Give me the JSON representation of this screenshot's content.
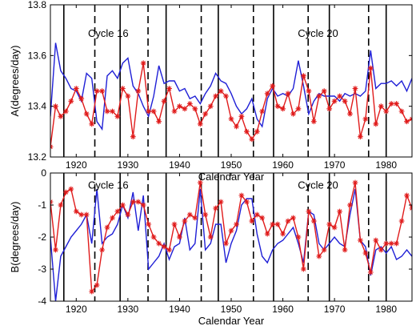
{
  "chart_data": [
    {
      "type": "line",
      "ylabel": "A(degrees/day)",
      "xlabel": "Calendar Year",
      "xlim": [
        1915,
        1985
      ],
      "ylim": [
        13.2,
        13.8
      ],
      "xticks": [
        1920,
        1930,
        1940,
        1950,
        1960,
        1970,
        1980
      ],
      "yticks": [
        13.2,
        13.4,
        13.6,
        13.8
      ],
      "ytick_labels": [
        "13.2",
        "13.4",
        "13.6",
        "13.8"
      ],
      "solid_lines": [
        1917.6,
        1928.5,
        1937.4,
        1947.5,
        1958.2,
        1969.0,
        1980.0
      ],
      "dashed_lines": [
        1923.6,
        1933.9,
        1944.2,
        1954.3,
        1964.9,
        1976.6
      ],
      "annotations": [
        {
          "text": "Cycle 16",
          "x": 1926.2,
          "y": 13.69
        },
        {
          "text": "Cycle 20",
          "x": 1966.8,
          "y": 13.69
        }
      ],
      "series": [
        {
          "color": "#1f1fd6",
          "marker": "none",
          "x": [
            1915,
            1916,
            1917,
            1918,
            1919,
            1920,
            1921,
            1922,
            1923,
            1924,
            1925,
            1926,
            1927,
            1928,
            1929,
            1930,
            1931,
            1932,
            1933,
            1934,
            1935,
            1936,
            1937,
            1938,
            1939,
            1940,
            1941,
            1942,
            1943,
            1944,
            1945,
            1946,
            1947,
            1948,
            1949,
            1950,
            1951,
            1952,
            1953,
            1954,
            1955,
            1956,
            1957,
            1958,
            1959,
            1960,
            1961,
            1962,
            1963,
            1964,
            1965,
            1966,
            1967,
            1968,
            1969,
            1970,
            1971,
            1972,
            1973,
            1974,
            1975,
            1976,
            1977,
            1978,
            1979,
            1980,
            1981,
            1982,
            1983,
            1984,
            1985
          ],
          "y": [
            13.36,
            13.65,
            13.54,
            13.51,
            13.47,
            13.46,
            13.42,
            13.53,
            13.51,
            13.34,
            13.31,
            13.52,
            13.54,
            13.51,
            13.57,
            13.59,
            13.48,
            13.45,
            13.4,
            13.36,
            13.44,
            13.56,
            13.49,
            13.5,
            13.5,
            13.46,
            13.47,
            13.43,
            13.44,
            13.41,
            13.45,
            13.48,
            13.53,
            13.5,
            13.49,
            13.45,
            13.4,
            13.37,
            13.39,
            13.43,
            13.35,
            13.32,
            13.43,
            13.47,
            13.44,
            13.45,
            13.44,
            13.47,
            13.58,
            13.48,
            13.37,
            13.42,
            13.45,
            13.44,
            13.44,
            13.44,
            13.42,
            13.45,
            13.44,
            13.45,
            13.44,
            13.46,
            13.62,
            13.47,
            13.49,
            13.49,
            13.5,
            13.48,
            13.5,
            13.46,
            13.51
          ]
        },
        {
          "color": "#e01b1b",
          "marker": "star",
          "x": [
            1915,
            1916,
            1917,
            1918,
            1919,
            1920,
            1921,
            1922,
            1923,
            1924,
            1925,
            1926,
            1927,
            1928,
            1929,
            1930,
            1931,
            1932,
            1933,
            1934,
            1935,
            1936,
            1937,
            1938,
            1939,
            1940,
            1941,
            1942,
            1943,
            1944,
            1945,
            1946,
            1947,
            1948,
            1949,
            1950,
            1951,
            1952,
            1953,
            1954,
            1955,
            1956,
            1957,
            1958,
            1959,
            1960,
            1961,
            1962,
            1963,
            1964,
            1965,
            1966,
            1967,
            1968,
            1969,
            1970,
            1971,
            1972,
            1973,
            1974,
            1975,
            1976,
            1977,
            1978,
            1979,
            1980,
            1981,
            1982,
            1983,
            1984,
            1985
          ],
          "y": [
            13.24,
            13.4,
            13.36,
            13.38,
            13.42,
            13.47,
            13.43,
            13.37,
            13.33,
            13.46,
            13.46,
            13.38,
            13.38,
            13.36,
            13.47,
            13.44,
            13.28,
            13.46,
            13.57,
            13.38,
            13.38,
            13.34,
            13.42,
            13.47,
            13.38,
            13.4,
            13.39,
            13.41,
            13.39,
            13.33,
            13.37,
            13.4,
            13.44,
            13.46,
            13.44,
            13.35,
            13.32,
            13.36,
            13.3,
            13.27,
            13.3,
            13.38,
            13.45,
            13.48,
            13.4,
            13.39,
            13.45,
            13.37,
            13.39,
            13.52,
            13.46,
            13.34,
            13.44,
            13.46,
            13.39,
            13.42,
            13.44,
            13.42,
            13.37,
            13.47,
            13.28,
            13.35,
            13.55,
            13.33,
            13.4,
            13.38,
            13.41,
            13.41,
            13.38,
            13.34,
            13.35
          ]
        }
      ]
    },
    {
      "type": "line",
      "ylabel": "B(degrees/day)",
      "xlabel": "Calendar Year",
      "xlim": [
        1915,
        1985
      ],
      "ylim": [
        -4,
        0
      ],
      "xticks": [
        1920,
        1930,
        1940,
        1950,
        1960,
        1970,
        1980
      ],
      "yticks": [
        -4,
        -3,
        -2,
        -1,
        0
      ],
      "ytick_labels": [
        "-4",
        "-3",
        "-2",
        "-1",
        "0"
      ],
      "solid_lines": [
        1917.6,
        1928.5,
        1937.4,
        1947.5,
        1958.2,
        1969.0,
        1980.0
      ],
      "dashed_lines": [
        1923.6,
        1933.9,
        1944.2,
        1954.3,
        1964.9,
        1976.6
      ],
      "annotations": [
        {
          "text": "Cycle 16",
          "x": 1926.2,
          "y": -0.36
        },
        {
          "text": "Cycle 20",
          "x": 1966.8,
          "y": -0.36
        }
      ],
      "series": [
        {
          "color": "#1f1fd6",
          "marker": "none",
          "x": [
            1915,
            1916,
            1917,
            1918,
            1919,
            1920,
            1921,
            1922,
            1923,
            1924,
            1925,
            1926,
            1927,
            1928,
            1929,
            1930,
            1931,
            1932,
            1933,
            1934,
            1935,
            1936,
            1937,
            1938,
            1939,
            1940,
            1941,
            1942,
            1943,
            1944,
            1945,
            1946,
            1947,
            1948,
            1949,
            1950,
            1951,
            1952,
            1953,
            1954,
            1955,
            1956,
            1957,
            1958,
            1959,
            1960,
            1961,
            1962,
            1963,
            1964,
            1965,
            1966,
            1967,
            1968,
            1969,
            1970,
            1971,
            1972,
            1973,
            1974,
            1975,
            1976,
            1977,
            1978,
            1979,
            1980,
            1981,
            1982,
            1983,
            1984,
            1985
          ],
          "y": [
            -2.0,
            -4.0,
            -2.6,
            -2.3,
            -2.0,
            -1.8,
            -1.6,
            -1.3,
            -2.2,
            -0.5,
            -2.2,
            -2.0,
            -1.9,
            -1.6,
            -1.0,
            -1.4,
            -0.6,
            -1.8,
            -0.7,
            -3.0,
            -2.8,
            -2.6,
            -2.2,
            -2.7,
            -2.3,
            -2.2,
            -1.4,
            -2.4,
            -2.2,
            -0.5,
            -2.4,
            -2.2,
            -1.6,
            -1.6,
            -2.8,
            -2.2,
            -1.8,
            -1.0,
            -0.8,
            -0.8,
            -1.9,
            -2.6,
            -2.8,
            -2.4,
            -2.2,
            -2.1,
            -1.9,
            -1.7,
            -2.2,
            -2.8,
            -1.2,
            -1.3,
            -2.2,
            -2.4,
            -2.2,
            -2.0,
            -2.2,
            -2.3,
            -1.3,
            -0.5,
            -2.1,
            -2.3,
            -3.2,
            -2.4,
            -2.3,
            -2.5,
            -2.3,
            -2.7,
            -2.6,
            -2.4,
            -2.6
          ]
        },
        {
          "color": "#e01b1b",
          "marker": "star",
          "x": [
            1915,
            1916,
            1917,
            1918,
            1919,
            1920,
            1921,
            1922,
            1923,
            1924,
            1925,
            1926,
            1927,
            1928,
            1929,
            1930,
            1931,
            1932,
            1933,
            1934,
            1935,
            1936,
            1937,
            1938,
            1939,
            1940,
            1941,
            1942,
            1943,
            1944,
            1945,
            1946,
            1947,
            1948,
            1949,
            1950,
            1951,
            1952,
            1953,
            1954,
            1955,
            1956,
            1957,
            1958,
            1959,
            1960,
            1961,
            1962,
            1963,
            1964,
            1965,
            1966,
            1967,
            1968,
            1969,
            1970,
            1971,
            1972,
            1973,
            1974,
            1975,
            1976,
            1977,
            1978,
            1979,
            1980,
            1981,
            1982,
            1983,
            1984,
            1985
          ],
          "y": [
            -0.9,
            -2.4,
            -1.0,
            -0.6,
            -0.5,
            -1.2,
            -1.3,
            -1.3,
            -3.7,
            -3.5,
            -2.4,
            -1.7,
            -1.4,
            -1.2,
            -1.0,
            -1.3,
            -0.9,
            -0.9,
            -1.0,
            -1.6,
            -2.0,
            -2.2,
            -2.3,
            -2.4,
            -1.6,
            -2.0,
            -1.5,
            -1.3,
            -1.4,
            -0.3,
            -1.3,
            -2.0,
            -1.1,
            -0.9,
            -2.2,
            -1.8,
            -1.6,
            -0.7,
            -0.9,
            -1.5,
            -1.3,
            -1.4,
            -1.9,
            -1.6,
            -1.6,
            -1.9,
            -1.5,
            -1.4,
            -2.0,
            -3.0,
            -1.2,
            -1.5,
            -2.6,
            -2.4,
            -1.6,
            -1.7,
            -1.2,
            -2.4,
            -1.0,
            -0.3,
            -2.1,
            -2.5,
            -3.1,
            -2.1,
            -2.4,
            -2.2,
            -2.2,
            -2.2,
            -1.5,
            -0.7,
            -1.1
          ]
        }
      ]
    }
  ]
}
